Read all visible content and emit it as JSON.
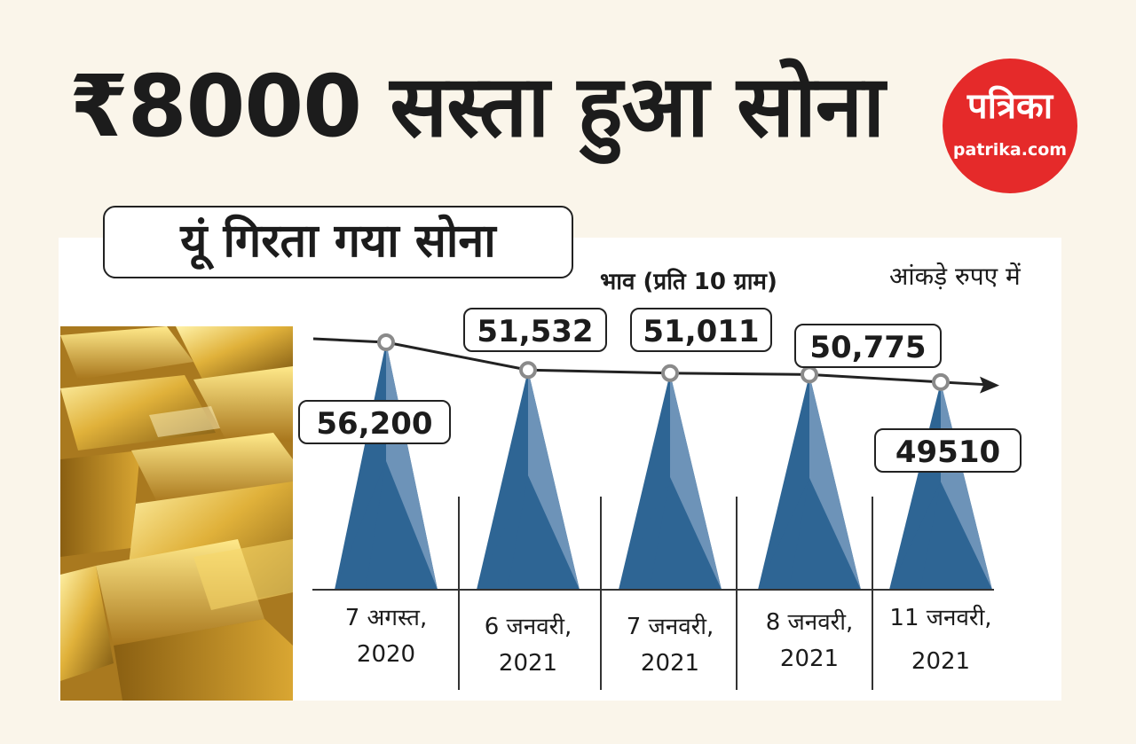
{
  "headline": "₹8000 सस्ता हुआ सोना",
  "logo": {
    "main": "पत्रिका",
    "sub": "patrika.com",
    "color": "#e52a2a"
  },
  "chart_data": {
    "type": "bar",
    "title": "यूं गिरता गया सोना",
    "ylabel": "भाव (प्रति 10 ग्राम)",
    "note": "आंकड़े रुपए में",
    "categories": [
      "7 अगस्त,\n2020",
      "6 जनवरी,\n2021",
      "7 जनवरी,\n2021",
      "8 जनवरी,\n2021",
      "11 जनवरी,\n2021"
    ],
    "values": [
      56200,
      51532,
      51011,
      50775,
      49510
    ],
    "value_labels": [
      "56,200",
      "51,532",
      "51,011",
      "50,775",
      "49510"
    ],
    "trend_line": true,
    "colors": {
      "dark": "#2e6594",
      "light": "#6d93b8",
      "line": "#222222",
      "marker": "#8a8a8a"
    }
  }
}
